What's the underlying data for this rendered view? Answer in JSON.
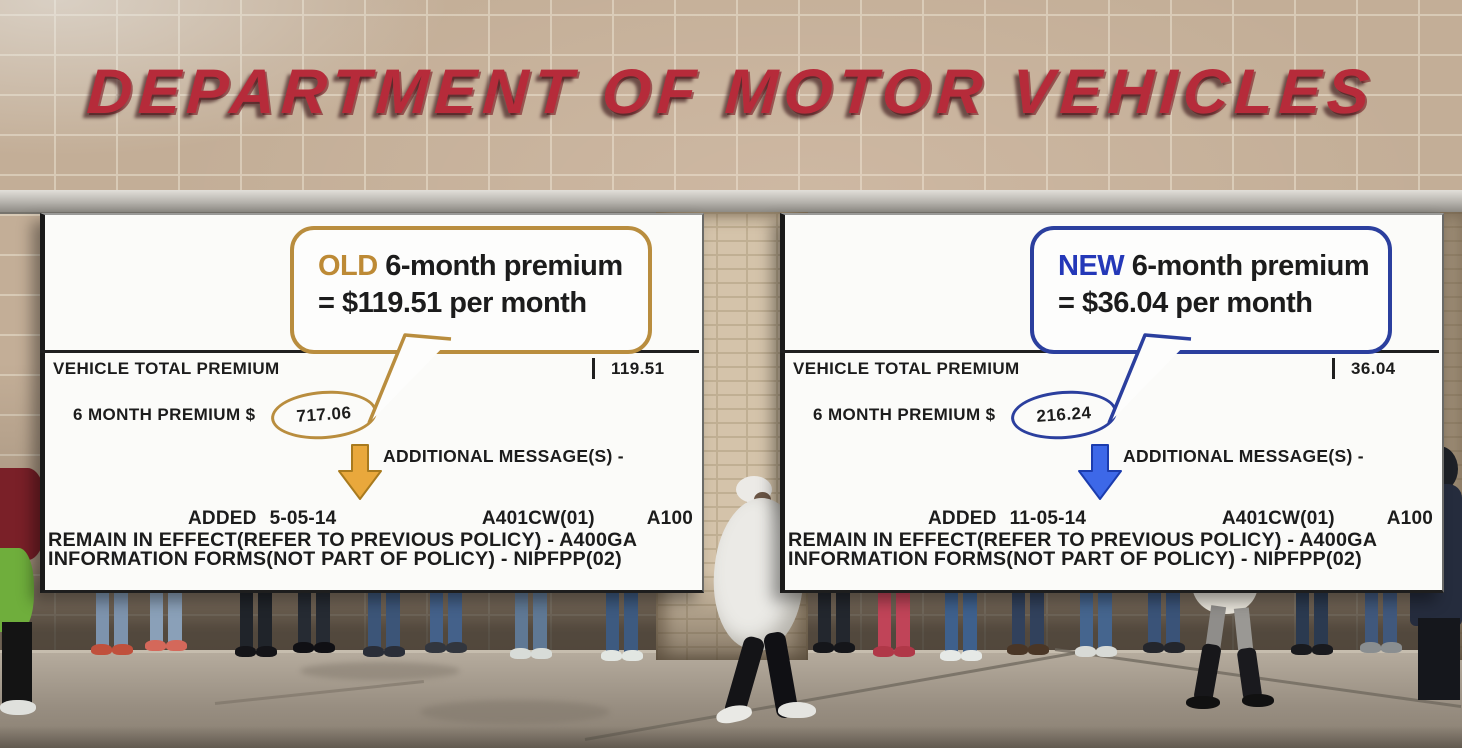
{
  "theme": {
    "sign_color": "#b62b3a",
    "ink": "#1c1c1c",
    "old_accent": "#b98d3e",
    "old_text": "#bd8a35",
    "old_arrow_fill": "#e9a83c",
    "old_arrow_edge": "#a87a1e",
    "new_accent": "#2b3f9e",
    "new_text": "#2438b8",
    "new_arrow_fill": "#3d68e8",
    "new_arrow_edge": "#1b3cae"
  },
  "building": {
    "sign_text": "DEPARTMENT OF MOTOR VEHICLES"
  },
  "panels": {
    "old": {
      "callout_tag": "OLD",
      "callout_line1": " 6-month premium",
      "callout_line2": "= $119.51 per month",
      "total_label": "VEHICLE TOTAL PREMIUM",
      "total_value": "119.51",
      "premium_label": "6 MONTH PREMIUM $",
      "premium_value": "717.06",
      "additional_label": "ADDITIONAL MESSAGE(S) -",
      "added_label": "ADDED",
      "added_date": "5-05-14",
      "added_code": "A401CW(01)",
      "added_code2": "A100",
      "remain_line": "REMAIN IN EFFECT(REFER TO PREVIOUS POLICY) - A400GA",
      "forms_line": "INFORMATION FORMS(NOT PART OF POLICY) - NIPFPP(02)"
    },
    "new": {
      "callout_tag": "NEW",
      "callout_line1": " 6-month premium",
      "callout_line2": "= $36.04 per month",
      "total_label": "VEHICLE TOTAL PREMIUM",
      "total_value": "36.04",
      "premium_label": "6 MONTH PREMIUM $",
      "premium_value": "216.24",
      "additional_label": "ADDITIONAL MESSAGE(S) -",
      "added_label": "ADDED",
      "added_date": "11-05-14",
      "added_code": "A401CW(01)",
      "added_code2": "A100",
      "remain_line": "REMAIN IN EFFECT(REFER TO PREVIOUS POLICY) - A400GA",
      "forms_line": "INFORMATION FORMS(NOT PART OF POLICY) - NIPFPP(02)"
    }
  }
}
